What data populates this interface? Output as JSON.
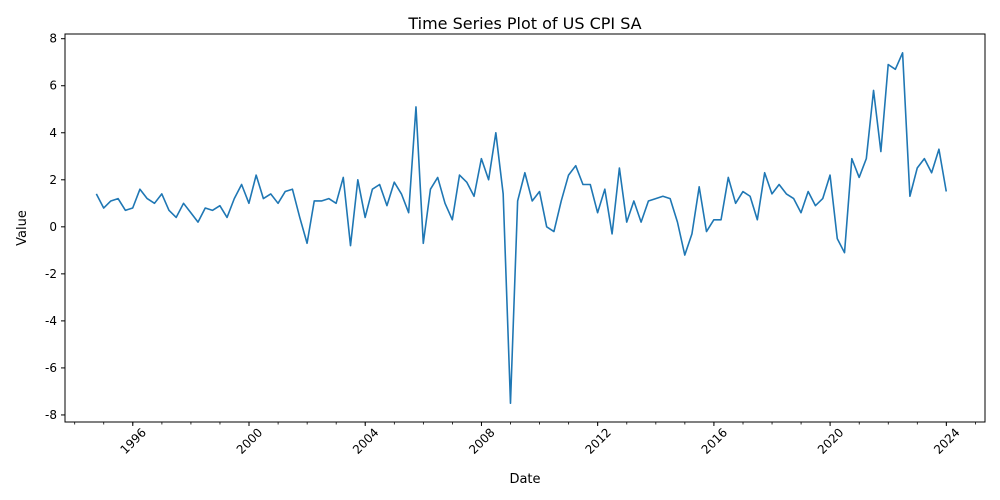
{
  "chart_data": {
    "type": "line",
    "title": "Time Series Plot of US CPI SA",
    "xlabel": "Date",
    "ylabel": "Value",
    "x_axis_type": "date",
    "xlim": [
      "1993-09-01",
      "2025-05-01"
    ],
    "ylim": [
      -8.3,
      8.2
    ],
    "xticks": [
      "1996",
      "2000",
      "2004",
      "2008",
      "2012",
      "2016",
      "2020",
      "2024"
    ],
    "yticks": [
      -8,
      -6,
      -4,
      -2,
      0,
      2,
      4,
      6,
      8
    ],
    "grid": false,
    "legend": "none",
    "series": [
      {
        "color": "#1f77b4",
        "x": [
          "1994-09-30",
          "1994-12-31",
          "1995-03-31",
          "1995-06-30",
          "1995-09-30",
          "1995-12-31",
          "1996-03-31",
          "1996-06-30",
          "1996-09-30",
          "1996-12-31",
          "1997-03-31",
          "1997-06-30",
          "1997-09-30",
          "1997-12-31",
          "1998-03-31",
          "1998-06-30",
          "1998-09-30",
          "1998-12-31",
          "1999-03-31",
          "1999-06-30",
          "1999-09-30",
          "1999-12-31",
          "2000-03-31",
          "2000-06-30",
          "2000-09-30",
          "2000-12-31",
          "2001-03-31",
          "2001-06-30",
          "2001-09-30",
          "2001-12-31",
          "2002-03-31",
          "2002-06-30",
          "2002-09-30",
          "2002-12-31",
          "2003-03-31",
          "2003-06-30",
          "2003-09-30",
          "2003-12-31",
          "2004-03-31",
          "2004-06-30",
          "2004-09-30",
          "2004-12-31",
          "2005-03-31",
          "2005-06-30",
          "2005-09-30",
          "2005-12-31",
          "2006-03-31",
          "2006-06-30",
          "2006-09-30",
          "2006-12-31",
          "2007-03-31",
          "2007-06-30",
          "2007-09-30",
          "2007-12-31",
          "2008-03-31",
          "2008-06-30",
          "2008-09-30",
          "2008-12-31",
          "2009-03-31",
          "2009-06-30",
          "2009-09-30",
          "2009-12-31",
          "2010-03-31",
          "2010-06-30",
          "2010-09-30",
          "2010-12-31",
          "2011-03-31",
          "2011-06-30",
          "2011-09-30",
          "2011-12-31",
          "2012-03-31",
          "2012-06-30",
          "2012-09-30",
          "2012-12-31",
          "2013-03-31",
          "2013-06-30",
          "2013-09-30",
          "2013-12-31",
          "2014-03-31",
          "2014-06-30",
          "2014-09-30",
          "2014-12-31",
          "2015-03-31",
          "2015-06-30",
          "2015-09-30",
          "2015-12-31",
          "2016-03-31",
          "2016-06-30",
          "2016-09-30",
          "2016-12-31",
          "2017-03-31",
          "2017-06-30",
          "2017-09-30",
          "2017-12-31",
          "2018-03-31",
          "2018-06-30",
          "2018-09-30",
          "2018-12-31",
          "2019-03-31",
          "2019-06-30",
          "2019-09-30",
          "2019-12-31",
          "2020-03-31",
          "2020-06-30",
          "2020-09-30",
          "2020-12-31",
          "2021-03-31",
          "2021-06-30",
          "2021-09-30",
          "2021-12-31",
          "2022-03-31",
          "2022-06-30",
          "2022-09-30",
          "2022-12-31",
          "2023-03-31",
          "2023-06-30",
          "2023-09-30",
          "2023-12-31"
        ],
        "y": [
          1.4,
          0.8,
          1.1,
          1.2,
          0.7,
          0.8,
          1.6,
          1.2,
          1.0,
          1.4,
          0.7,
          0.4,
          1.0,
          0.6,
          0.2,
          0.8,
          0.7,
          0.9,
          0.4,
          1.2,
          1.8,
          1.0,
          2.2,
          1.2,
          1.4,
          1.0,
          1.5,
          1.6,
          0.4,
          -0.7,
          1.1,
          1.1,
          1.2,
          1.0,
          2.1,
          -0.8,
          2.0,
          0.4,
          1.6,
          1.8,
          0.9,
          1.9,
          1.4,
          0.6,
          5.1,
          -0.7,
          1.6,
          2.1,
          1.0,
          0.3,
          2.2,
          1.9,
          1.3,
          2.9,
          2.0,
          4.0,
          1.4,
          -7.5,
          1.1,
          2.3,
          1.1,
          1.5,
          0.0,
          -0.2,
          1.1,
          2.2,
          2.6,
          1.8,
          1.8,
          0.6,
          1.6,
          -0.3,
          2.5,
          0.2,
          1.1,
          0.2,
          1.1,
          1.2,
          1.3,
          1.2,
          0.2,
          -1.2,
          -0.3,
          1.7,
          -0.2,
          0.3,
          0.3,
          2.1,
          1.0,
          1.5,
          1.3,
          0.3,
          2.3,
          1.4,
          1.8,
          1.4,
          1.2,
          0.6,
          1.5,
          0.9,
          1.2,
          2.2,
          -0.5,
          -1.1,
          2.9,
          2.1,
          2.9,
          5.8,
          3.2,
          6.9,
          6.7,
          7.4,
          1.3,
          2.5,
          2.9,
          2.3,
          3.3,
          1.5
        ]
      }
    ]
  }
}
